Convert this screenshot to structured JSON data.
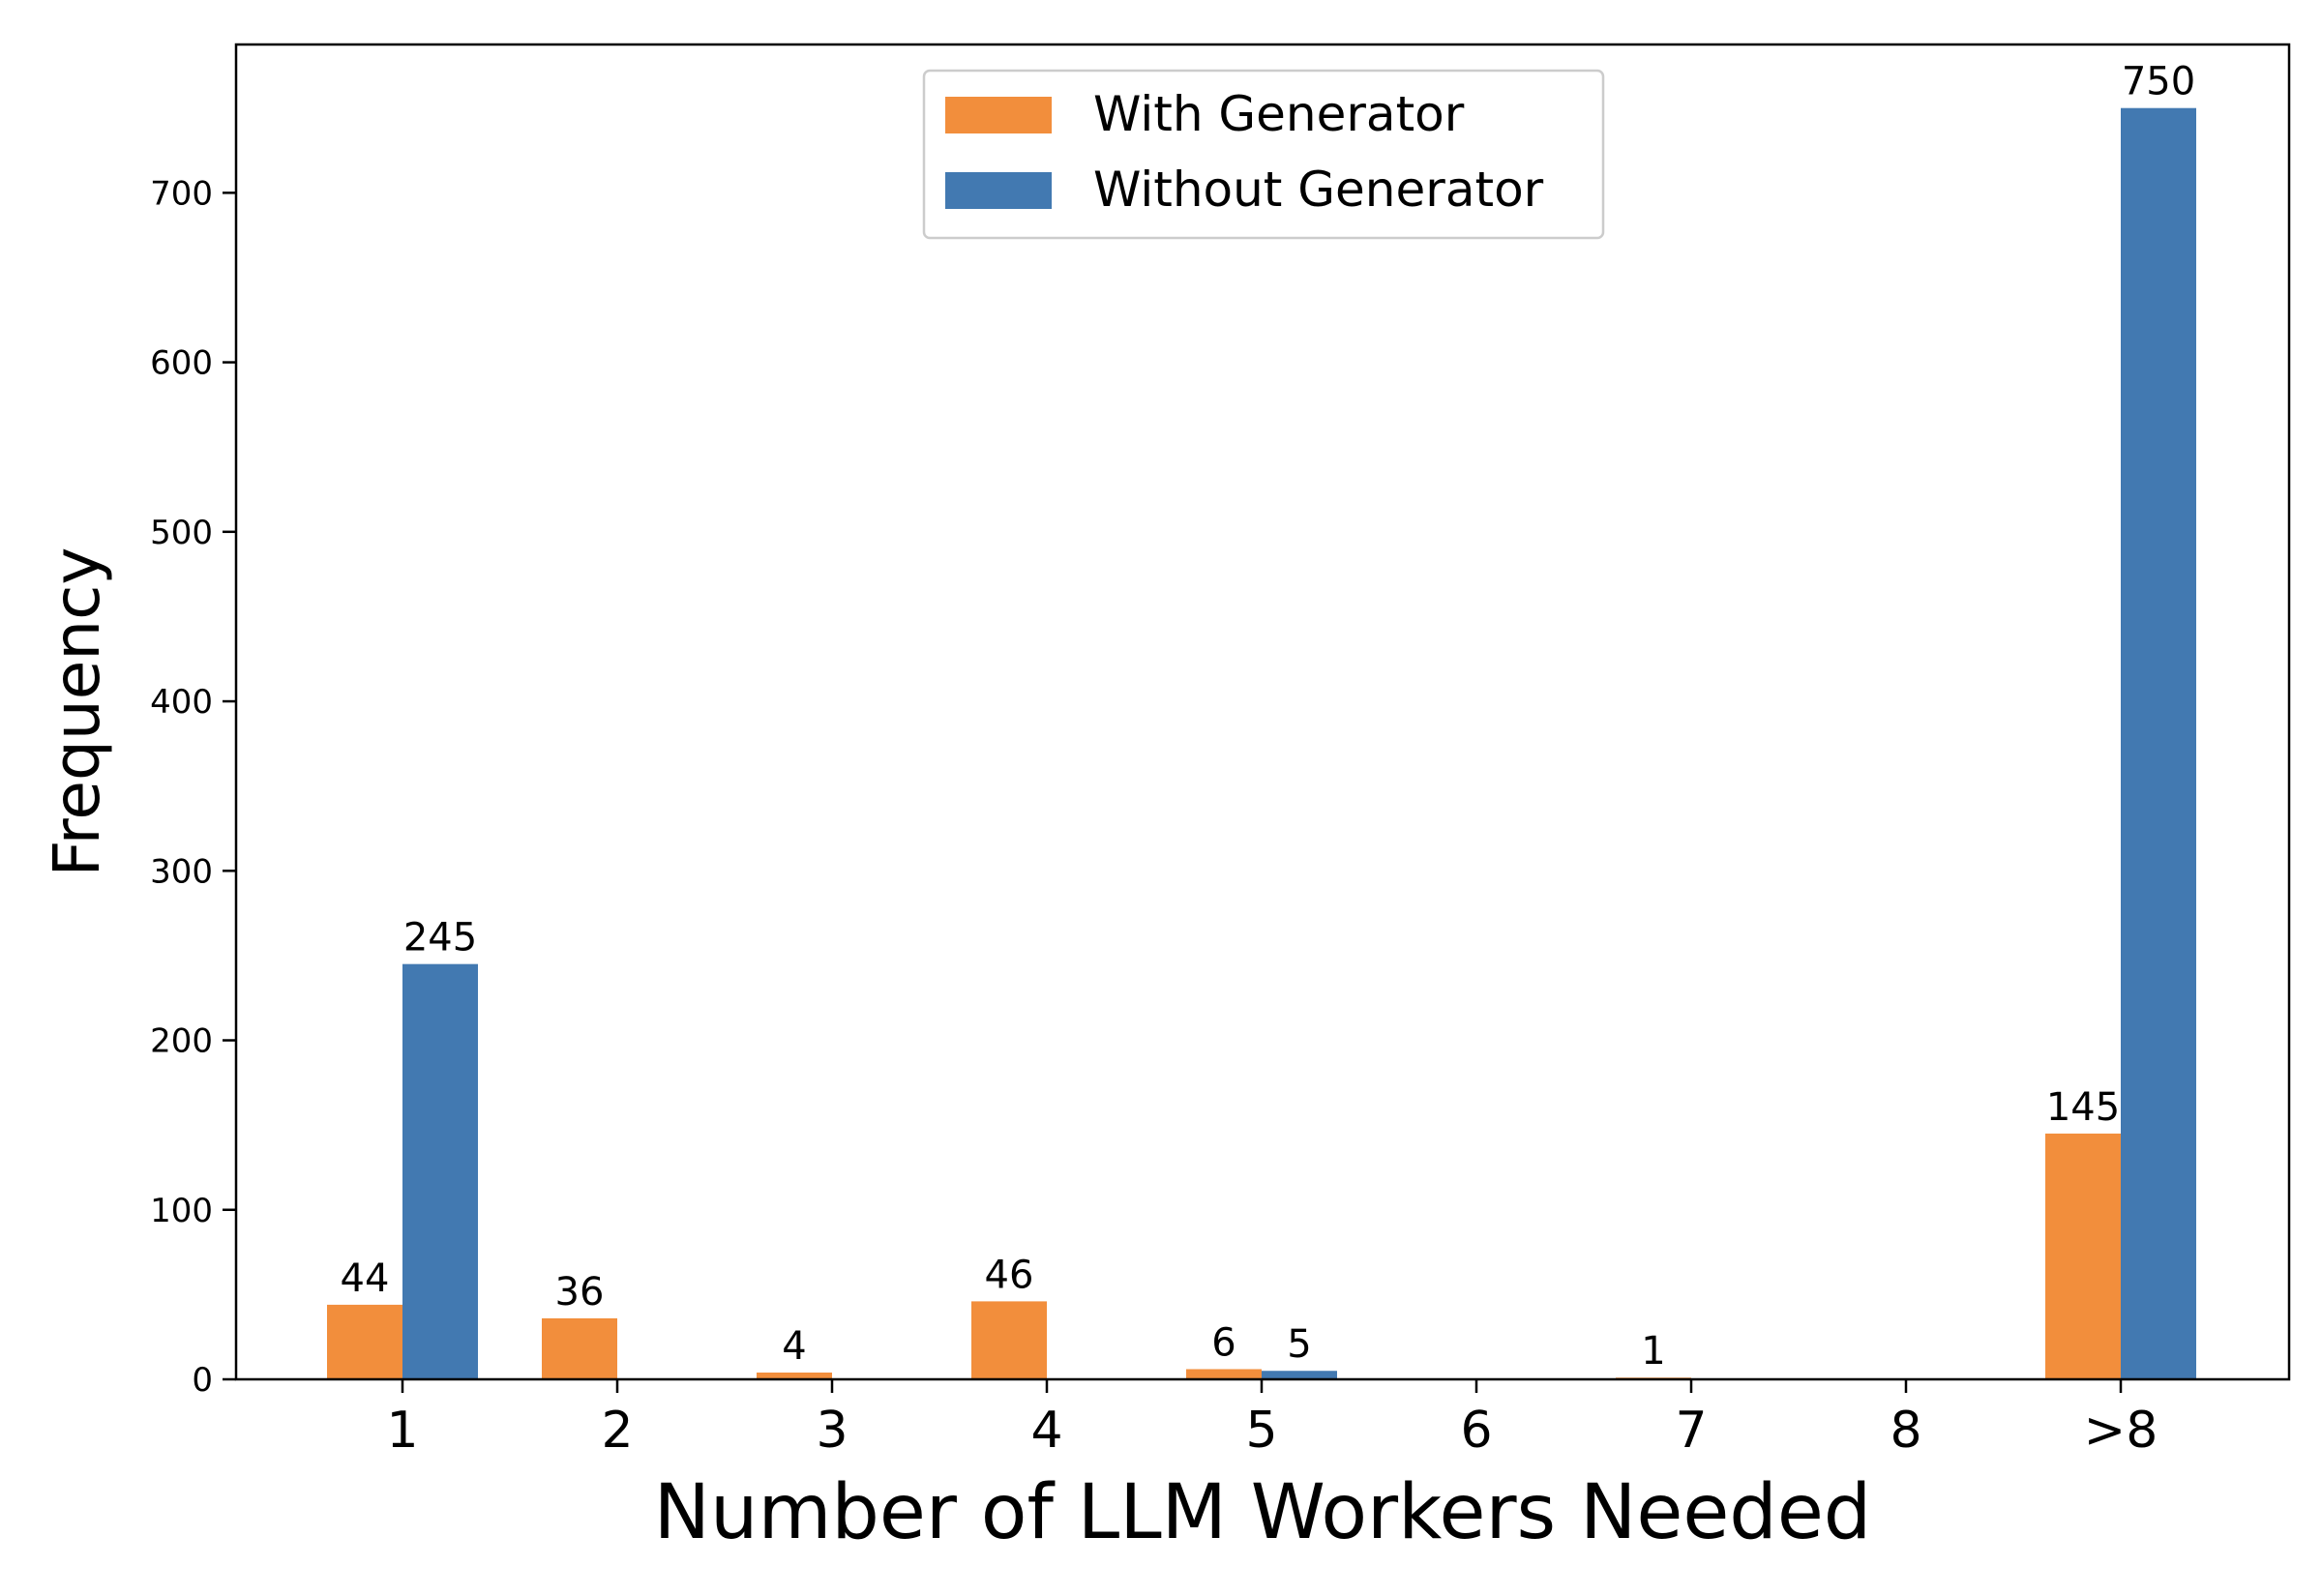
{
  "chart_data": {
    "type": "bar",
    "categories": [
      "1",
      "2",
      "3",
      "4",
      "5",
      "6",
      "7",
      "8",
      ">8"
    ],
    "series": [
      {
        "name": "With Generator",
        "color": "#f28e3c",
        "values": [
          44,
          36,
          4,
          46,
          6,
          0,
          1,
          0,
          145
        ]
      },
      {
        "name": "Without Generator",
        "color": "#4279b1",
        "values": [
          245,
          0,
          0,
          0,
          5,
          0,
          0,
          0,
          750
        ]
      }
    ],
    "data_labels": [
      [
        "44",
        "36",
        "4",
        "46",
        "6",
        null,
        "1",
        null,
        "145"
      ],
      [
        "245",
        null,
        null,
        null,
        "5",
        null,
        null,
        null,
        "750"
      ]
    ],
    "title": "",
    "xlabel": "Number of LLM Workers Needed",
    "ylabel": "Frequency",
    "ylim": [
      0,
      787.5
    ],
    "yticks": [
      0,
      100,
      200,
      300,
      400,
      500,
      600,
      700
    ],
    "grid": false,
    "legend": {
      "position": "top-center"
    }
  }
}
